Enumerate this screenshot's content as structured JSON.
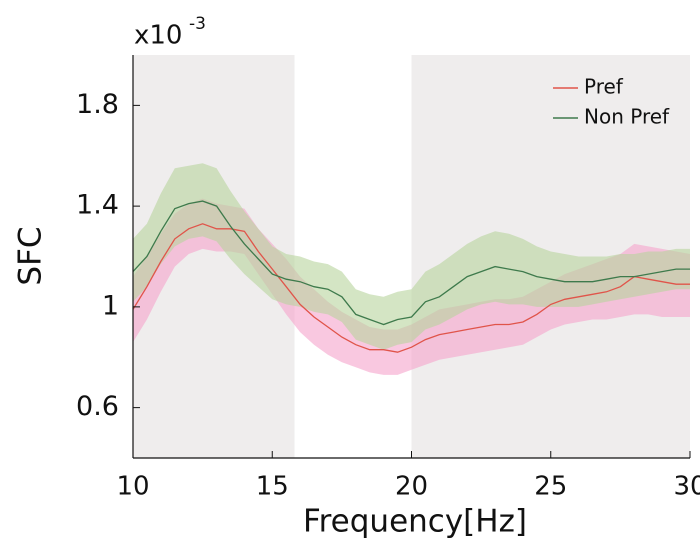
{
  "chart_data": {
    "type": "line",
    "x_label": "Frequency[Hz]",
    "y_label": "SFC",
    "y_multiplier": "x10",
    "y_multiplier_exp": "-3",
    "xlim": [
      10,
      30
    ],
    "ylim": [
      0.4,
      2.0
    ],
    "xticks": [
      10,
      15,
      20,
      25,
      30
    ],
    "yticks": [
      0.6,
      1,
      1.4,
      1.8
    ],
    "shaded_regions": [
      [
        10,
        15.8
      ],
      [
        20,
        30
      ]
    ],
    "shaded_color": "#efeded",
    "legend": "upper right",
    "x": [
      10,
      10.5,
      11,
      11.5,
      12,
      12.5,
      13,
      13.5,
      14,
      14.5,
      15,
      15.5,
      16,
      16.5,
      17,
      17.5,
      18,
      18.5,
      19,
      19.5,
      20,
      20.5,
      21,
      21.5,
      22,
      22.5,
      23,
      23.5,
      24,
      24.5,
      25,
      25.5,
      26,
      26.5,
      27,
      27.5,
      28,
      28.5,
      29,
      29.5,
      30
    ],
    "series": [
      {
        "name": "Pref",
        "color": "#e0544a",
        "band_color": "#f5a3cc",
        "values": [
          0.99,
          1.08,
          1.18,
          1.27,
          1.31,
          1.33,
          1.31,
          1.31,
          1.3,
          1.22,
          1.15,
          1.08,
          1.01,
          0.96,
          0.92,
          0.88,
          0.85,
          0.83,
          0.83,
          0.82,
          0.84,
          0.87,
          0.89,
          0.9,
          0.91,
          0.92,
          0.93,
          0.93,
          0.94,
          0.97,
          1.01,
          1.03,
          1.04,
          1.05,
          1.06,
          1.08,
          1.12,
          1.11,
          1.1,
          1.09,
          1.09
        ],
        "lower": [
          0.86,
          0.95,
          1.06,
          1.16,
          1.21,
          1.23,
          1.22,
          1.22,
          1.21,
          1.13,
          1.05,
          0.97,
          0.9,
          0.85,
          0.81,
          0.78,
          0.76,
          0.74,
          0.73,
          0.73,
          0.75,
          0.77,
          0.79,
          0.8,
          0.81,
          0.82,
          0.83,
          0.84,
          0.85,
          0.88,
          0.91,
          0.93,
          0.94,
          0.95,
          0.95,
          0.96,
          0.97,
          0.97,
          0.96,
          0.96,
          0.96
        ],
        "upper": [
          1.12,
          1.2,
          1.29,
          1.37,
          1.41,
          1.43,
          1.41,
          1.4,
          1.39,
          1.31,
          1.25,
          1.19,
          1.12,
          1.07,
          1.02,
          0.98,
          0.95,
          0.92,
          0.91,
          0.91,
          0.93,
          0.96,
          0.99,
          1.0,
          1.01,
          1.02,
          1.03,
          1.03,
          1.04,
          1.07,
          1.1,
          1.13,
          1.15,
          1.17,
          1.19,
          1.21,
          1.25,
          1.24,
          1.23,
          1.22,
          1.21
        ]
      },
      {
        "name": "Non Pref",
        "color": "#3e7a4c",
        "band_color": "#b7d49c",
        "values": [
          1.14,
          1.2,
          1.3,
          1.39,
          1.41,
          1.42,
          1.4,
          1.32,
          1.25,
          1.19,
          1.13,
          1.11,
          1.1,
          1.08,
          1.07,
          1.04,
          0.97,
          0.95,
          0.93,
          0.95,
          0.96,
          1.02,
          1.04,
          1.08,
          1.12,
          1.14,
          1.16,
          1.15,
          1.14,
          1.12,
          1.11,
          1.1,
          1.1,
          1.1,
          1.11,
          1.12,
          1.12,
          1.13,
          1.14,
          1.15,
          1.15
        ],
        "lower": [
          1.02,
          1.08,
          1.17,
          1.24,
          1.27,
          1.28,
          1.26,
          1.19,
          1.13,
          1.08,
          1.03,
          1.01,
          1.0,
          0.98,
          0.97,
          0.94,
          0.87,
          0.85,
          0.83,
          0.85,
          0.86,
          0.91,
          0.93,
          0.96,
          0.99,
          1.01,
          1.02,
          1.01,
          1.01,
          1.0,
          1.0,
          1.0,
          1.0,
          1.01,
          1.02,
          1.03,
          1.04,
          1.05,
          1.06,
          1.07,
          1.07
        ],
        "upper": [
          1.27,
          1.33,
          1.45,
          1.55,
          1.56,
          1.57,
          1.55,
          1.46,
          1.38,
          1.31,
          1.24,
          1.21,
          1.2,
          1.18,
          1.17,
          1.14,
          1.07,
          1.05,
          1.04,
          1.06,
          1.07,
          1.14,
          1.17,
          1.21,
          1.25,
          1.28,
          1.3,
          1.29,
          1.27,
          1.24,
          1.22,
          1.21,
          1.2,
          1.2,
          1.2,
          1.21,
          1.21,
          1.22,
          1.22,
          1.23,
          1.23
        ]
      }
    ]
  }
}
